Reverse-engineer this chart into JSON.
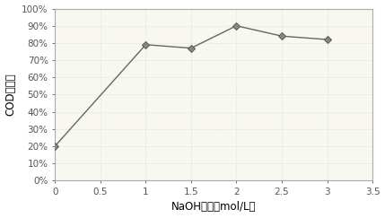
{
  "x": [
    0,
    1,
    1.5,
    2,
    2.5,
    3
  ],
  "y": [
    0.2,
    0.79,
    0.77,
    0.9,
    0.84,
    0.82
  ],
  "xlim": [
    0,
    3.5
  ],
  "ylim": [
    0,
    1.0
  ],
  "xticks": [
    0,
    0.5,
    1.0,
    1.5,
    2.0,
    2.5,
    3.0,
    3.5
  ],
  "xtick_labels": [
    "0",
    "0.5",
    "1",
    "1.5",
    "2",
    "2.5",
    "3",
    "3.5"
  ],
  "yticks": [
    0,
    0.1,
    0.2,
    0.3,
    0.4,
    0.5,
    0.6,
    0.7,
    0.8,
    0.9,
    1.0
  ],
  "xlabel": "NaOH浓度（mol/L）",
  "ylabel": "COD去除率",
  "line_color": "#666666",
  "marker": "D",
  "marker_size": 4,
  "marker_facecolor": "#888888",
  "marker_edgecolor": "#555555",
  "line_width": 1.0,
  "grid_color": "#c8d8c8",
  "grid_alpha": 1.0,
  "background_color": "#ffffff",
  "plot_bg_color": "#f8f8f0",
  "font_size_label": 8.5,
  "font_size_tick": 7.5,
  "spine_color": "#aaaaaa"
}
